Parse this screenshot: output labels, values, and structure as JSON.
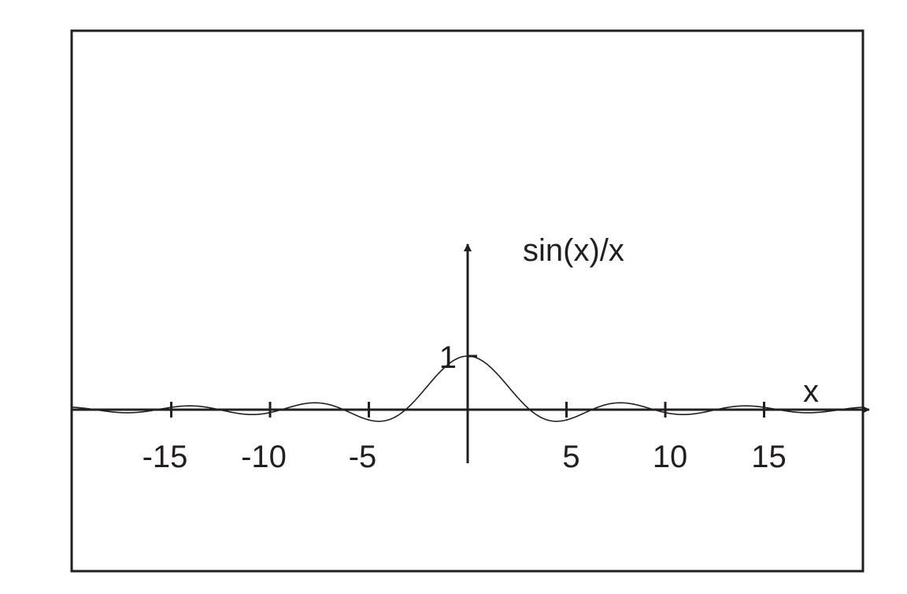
{
  "chart_data": {
    "type": "line",
    "title": "",
    "xlabel": "x",
    "ylabel": "sin(x)/x",
    "xlim": [
      -20,
      20
    ],
    "ylim": [
      -0.25,
      1.05
    ],
    "grid": false,
    "x_ticks": [
      -15,
      -10,
      -5,
      5,
      10,
      15
    ],
    "x_tick_labels": [
      "-15",
      "-10",
      "-5",
      "5",
      "10",
      "15"
    ],
    "y_ticks": [
      1
    ],
    "y_tick_labels": [
      "1"
    ],
    "series": [
      {
        "function": "sin(x)/x",
        "x": [
          -20,
          -18,
          -16,
          -14,
          -12,
          -10,
          -8,
          -6,
          -4,
          -2,
          0,
          2,
          4,
          6,
          8,
          10,
          12,
          14,
          16,
          18,
          20
        ],
        "y": [
          0.046,
          -0.042,
          -0.018,
          0.071,
          -0.045,
          -0.054,
          0.124,
          -0.047,
          -0.189,
          0.455,
          1.0,
          0.455,
          -0.189,
          -0.047,
          0.124,
          -0.054,
          -0.045,
          0.071,
          -0.018,
          -0.042,
          0.046
        ],
        "color": "#231f20"
      }
    ]
  }
}
